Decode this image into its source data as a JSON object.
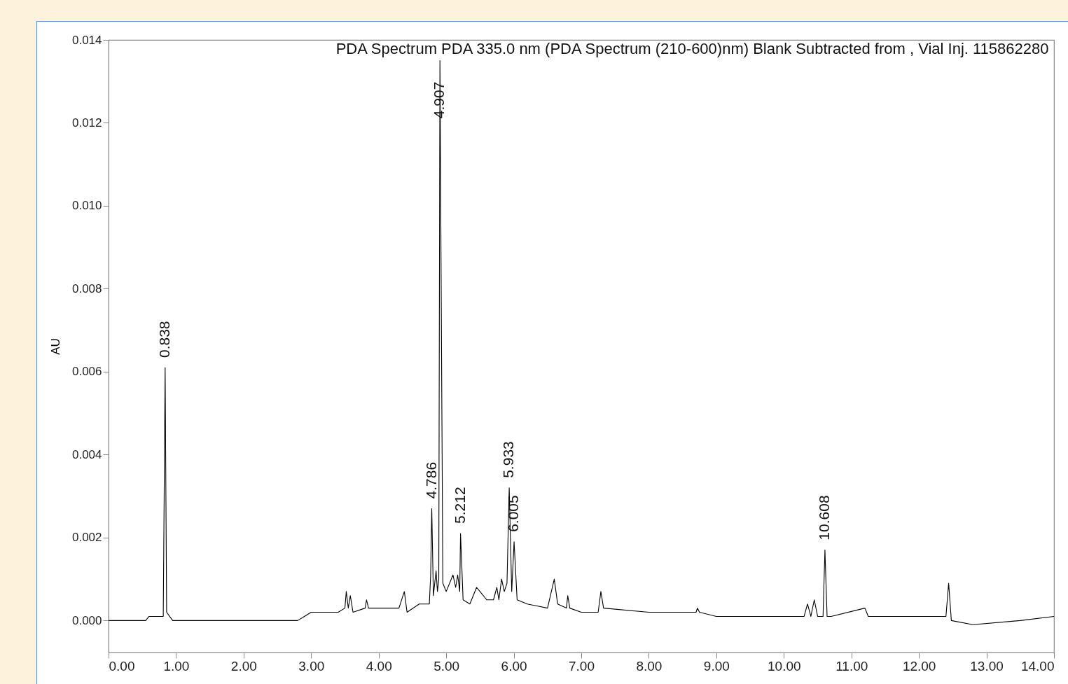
{
  "chart_data": {
    "type": "line",
    "title": "PDA Spectrum PDA 335.0 nm (PDA Spectrum (210-600)nm) Blank Subtracted from , Vial  Inj. 115862280",
    "ylabel": "AU",
    "xlim": [
      0,
      14
    ],
    "ylim": [
      -0.00077,
      0.014
    ],
    "xticks": [
      {
        "value": 0,
        "label": "0.00"
      },
      {
        "value": 1,
        "label": "1.00"
      },
      {
        "value": 2,
        "label": "2.00"
      },
      {
        "value": 3,
        "label": "3.00"
      },
      {
        "value": 4,
        "label": "4.00"
      },
      {
        "value": 5,
        "label": "5.00"
      },
      {
        "value": 6,
        "label": "6.00"
      },
      {
        "value": 7,
        "label": "7.00"
      },
      {
        "value": 8,
        "label": "8.00"
      },
      {
        "value": 9,
        "label": "9.00"
      },
      {
        "value": 10,
        "label": "10.00"
      },
      {
        "value": 11,
        "label": "11.00"
      },
      {
        "value": 12,
        "label": "12.00"
      },
      {
        "value": 13,
        "label": "13.00"
      },
      {
        "value": 14,
        "label": "14.00"
      }
    ],
    "yticks": [
      {
        "value": 0,
        "label": "0.000"
      },
      {
        "value": 0.002,
        "label": "0.002"
      },
      {
        "value": 0.004,
        "label": "0.004"
      },
      {
        "value": 0.006,
        "label": "0.006"
      },
      {
        "value": 0.008,
        "label": "0.008"
      },
      {
        "value": 0.01,
        "label": "0.010"
      },
      {
        "value": 0.012,
        "label": "0.012"
      },
      {
        "value": 0.014,
        "label": "0.014"
      }
    ],
    "grid": false,
    "series": [
      {
        "color": "#000000",
        "x": [
          0,
          0.3,
          0.55,
          0.6,
          0.75,
          0.81,
          0.838,
          0.86,
          0.95,
          1.5,
          2.0,
          2.5,
          2.8,
          2.9,
          3.0,
          3.4,
          3.5,
          3.52,
          3.55,
          3.58,
          3.62,
          3.8,
          3.82,
          3.85,
          4.0,
          4.3,
          4.38,
          4.42,
          4.6,
          4.7,
          4.75,
          4.77,
          4.786,
          4.81,
          4.85,
          4.87,
          4.89,
          4.907,
          4.95,
          5.0,
          5.1,
          5.14,
          5.17,
          5.2,
          5.212,
          5.25,
          5.35,
          5.45,
          5.5,
          5.6,
          5.7,
          5.75,
          5.78,
          5.82,
          5.86,
          5.9,
          5.933,
          5.97,
          6.005,
          6.05,
          6.2,
          6.5,
          6.6,
          6.65,
          6.78,
          6.8,
          6.83,
          7.0,
          7.25,
          7.29,
          7.33,
          8.0,
          8.7,
          8.72,
          8.75,
          9.0,
          10.0,
          10.3,
          10.35,
          10.4,
          10.45,
          10.5,
          10.58,
          10.608,
          10.64,
          10.7,
          11.2,
          11.25,
          12.0,
          12.4,
          12.44,
          12.48,
          12.8,
          13.5,
          14.0
        ],
        "values": [
          0.0,
          0.0,
          0.0,
          0.0001,
          0.0001,
          0.0001,
          0.0061,
          0.0002,
          0.0,
          0.0,
          0.0,
          0.0,
          0.0,
          0.0001,
          0.0002,
          0.0002,
          0.0003,
          0.0007,
          0.0003,
          0.0006,
          0.0002,
          0.0003,
          0.0005,
          0.0003,
          0.0003,
          0.0003,
          0.0007,
          0.0002,
          0.0004,
          0.0004,
          0.0004,
          0.0011,
          0.0027,
          0.0006,
          0.0012,
          0.0007,
          0.001,
          0.0135,
          0.0009,
          0.0007,
          0.0011,
          0.0008,
          0.0011,
          0.0007,
          0.0021,
          0.0005,
          0.0004,
          0.0008,
          0.0007,
          0.0005,
          0.0005,
          0.0008,
          0.0005,
          0.001,
          0.0007,
          0.0009,
          0.0032,
          0.0007,
          0.0019,
          0.0005,
          0.0004,
          0.0003,
          0.001,
          0.0004,
          0.0003,
          0.0006,
          0.0003,
          0.0002,
          0.0002,
          0.0007,
          0.0003,
          0.0002,
          0.0002,
          0.0003,
          0.0002,
          0.0001,
          0.0001,
          0.0001,
          0.0004,
          0.0001,
          0.0005,
          0.0001,
          0.0001,
          0.0017,
          0.0001,
          0.0001,
          0.0003,
          0.0001,
          0.0001,
          0.0001,
          0.0009,
          0.0,
          -0.0001,
          0.0,
          0.0001
        ]
      }
    ],
    "annotations": [
      {
        "text": "0.838",
        "x": 0.838,
        "y": 0.0061
      },
      {
        "text": "4.786",
        "x": 4.786,
        "y": 0.0027
      },
      {
        "text": "4.907",
        "x": 4.907,
        "y": 0.0135
      },
      {
        "text": "5.212",
        "x": 5.212,
        "y": 0.0021
      },
      {
        "text": "5.933",
        "x": 5.933,
        "y": 0.0032
      },
      {
        "text": "6.005",
        "x": 6.005,
        "y": 0.0019
      },
      {
        "text": "10.608",
        "x": 10.608,
        "y": 0.0017
      }
    ]
  }
}
